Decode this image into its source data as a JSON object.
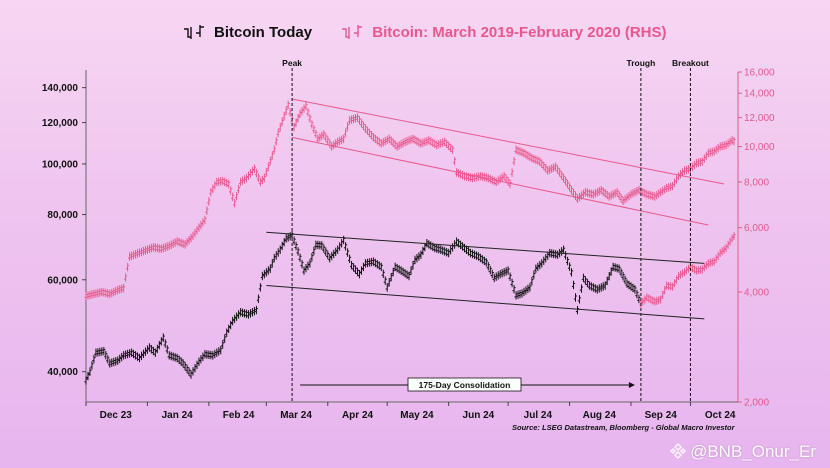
{
  "legend": {
    "left_label": "Bitcoin Today",
    "right_label": "Bitcoin: March 2019-February 2020 (RHS)"
  },
  "source_note": "Source: LSEG Datastream, Bloomberg - Global Macro Investor",
  "watermark": "@BNB_Onur_Er",
  "colors": {
    "today": "#111111",
    "hist": "#e8588c",
    "right_axis": "#e05a8a"
  },
  "chart_data": {
    "type": "line",
    "x_ticks": [
      "Dec 23",
      "Jan 24",
      "Feb 24",
      "Mar 24",
      "Apr 24",
      "May 24",
      "Jun 24",
      "Jul 24",
      "Aug 24",
      "Sep 24",
      "Oct 24"
    ],
    "y_left": {
      "scale": "log",
      "range": [
        35000,
        150000
      ],
      "ticks": [
        40000,
        60000,
        80000,
        100000,
        120000,
        140000
      ],
      "tick_labels": [
        "40,000",
        "60,000",
        "80,000",
        "100,000",
        "120,000",
        "140,000"
      ]
    },
    "y_right": {
      "scale": "log",
      "range": [
        2000,
        16000
      ],
      "ticks": [
        2000,
        4000,
        6000,
        8000,
        10000,
        12000,
        14000,
        16000
      ],
      "tick_labels": [
        "2,000",
        "4,000",
        "6,000",
        "8,000",
        "10,000",
        "12,000",
        "14,000",
        "16,000"
      ]
    },
    "series": [
      {
        "name": "Bitcoin Today",
        "axis": "left",
        "points": [
          {
            "x": "2023-12-01",
            "y": 38500
          },
          {
            "x": "2023-12-03",
            "y": 40000
          },
          {
            "x": "2023-12-06",
            "y": 43500
          },
          {
            "x": "2023-12-10",
            "y": 43800
          },
          {
            "x": "2023-12-13",
            "y": 41500
          },
          {
            "x": "2023-12-17",
            "y": 42000
          },
          {
            "x": "2023-12-20",
            "y": 43000
          },
          {
            "x": "2023-12-24",
            "y": 43500
          },
          {
            "x": "2023-12-28",
            "y": 42500
          },
          {
            "x": "2024-01-02",
            "y": 44500
          },
          {
            "x": "2024-01-05",
            "y": 43500
          },
          {
            "x": "2024-01-09",
            "y": 46500
          },
          {
            "x": "2024-01-12",
            "y": 43000
          },
          {
            "x": "2024-01-16",
            "y": 42500
          },
          {
            "x": "2024-01-19",
            "y": 41500
          },
          {
            "x": "2024-01-23",
            "y": 39500
          },
          {
            "x": "2024-01-27",
            "y": 41800
          },
          {
            "x": "2024-01-30",
            "y": 43200
          },
          {
            "x": "2024-02-03",
            "y": 43000
          },
          {
            "x": "2024-02-07",
            "y": 44000
          },
          {
            "x": "2024-02-10",
            "y": 47500
          },
          {
            "x": "2024-02-13",
            "y": 50000
          },
          {
            "x": "2024-02-17",
            "y": 52000
          },
          {
            "x": "2024-02-21",
            "y": 51500
          },
          {
            "x": "2024-02-25",
            "y": 52500
          },
          {
            "x": "2024-02-28",
            "y": 61000
          },
          {
            "x": "2024-03-03",
            "y": 63000
          },
          {
            "x": "2024-03-05",
            "y": 66000
          },
          {
            "x": "2024-03-08",
            "y": 68500
          },
          {
            "x": "2024-03-11",
            "y": 72000
          },
          {
            "x": "2024-03-14",
            "y": 73000
          },
          {
            "x": "2024-03-17",
            "y": 68000
          },
          {
            "x": "2024-03-20",
            "y": 62500
          },
          {
            "x": "2024-03-23",
            "y": 64500
          },
          {
            "x": "2024-03-26",
            "y": 70000
          },
          {
            "x": "2024-03-29",
            "y": 69800
          },
          {
            "x": "2024-04-02",
            "y": 66000
          },
          {
            "x": "2024-04-06",
            "y": 68500
          },
          {
            "x": "2024-04-09",
            "y": 71500
          },
          {
            "x": "2024-04-13",
            "y": 64000
          },
          {
            "x": "2024-04-17",
            "y": 61500
          },
          {
            "x": "2024-04-20",
            "y": 64500
          },
          {
            "x": "2024-04-24",
            "y": 65000
          },
          {
            "x": "2024-04-28",
            "y": 63500
          },
          {
            "x": "2024-05-01",
            "y": 58000
          },
          {
            "x": "2024-05-05",
            "y": 63500
          },
          {
            "x": "2024-05-08",
            "y": 62500
          },
          {
            "x": "2024-05-12",
            "y": 61000
          },
          {
            "x": "2024-05-15",
            "y": 65500
          },
          {
            "x": "2024-05-18",
            "y": 67000
          },
          {
            "x": "2024-05-21",
            "y": 70500
          },
          {
            "x": "2024-05-25",
            "y": 69000
          },
          {
            "x": "2024-05-28",
            "y": 68500
          },
          {
            "x": "2024-06-01",
            "y": 67500
          },
          {
            "x": "2024-06-05",
            "y": 71000
          },
          {
            "x": "2024-06-08",
            "y": 69500
          },
          {
            "x": "2024-06-12",
            "y": 67500
          },
          {
            "x": "2024-06-16",
            "y": 66500
          },
          {
            "x": "2024-06-20",
            "y": 64800
          },
          {
            "x": "2024-06-24",
            "y": 60500
          },
          {
            "x": "2024-06-27",
            "y": 61500
          },
          {
            "x": "2024-07-01",
            "y": 62500
          },
          {
            "x": "2024-07-05",
            "y": 56000
          },
          {
            "x": "2024-07-08",
            "y": 56500
          },
          {
            "x": "2024-07-12",
            "y": 58000
          },
          {
            "x": "2024-07-15",
            "y": 63000
          },
          {
            "x": "2024-07-18",
            "y": 64500
          },
          {
            "x": "2024-07-22",
            "y": 67500
          },
          {
            "x": "2024-07-26",
            "y": 67000
          },
          {
            "x": "2024-07-29",
            "y": 68500
          },
          {
            "x": "2024-08-02",
            "y": 62000
          },
          {
            "x": "2024-08-05",
            "y": 52500
          },
          {
            "x": "2024-08-08",
            "y": 60500
          },
          {
            "x": "2024-08-11",
            "y": 58500
          },
          {
            "x": "2024-08-15",
            "y": 57500
          },
          {
            "x": "2024-08-19",
            "y": 58500
          },
          {
            "x": "2024-08-23",
            "y": 63500
          },
          {
            "x": "2024-08-26",
            "y": 63000
          },
          {
            "x": "2024-08-30",
            "y": 59000
          },
          {
            "x": "2024-09-03",
            "y": 57500
          },
          {
            "x": "2024-09-06",
            "y": 54000
          }
        ]
      },
      {
        "name": "Bitcoin: March 2019-February 2020 (RHS)",
        "axis": "right",
        "points": [
          {
            "x": "2023-12-01",
            "y": 3900
          },
          {
            "x": "2023-12-05",
            "y": 3950
          },
          {
            "x": "2023-12-09",
            "y": 4000
          },
          {
            "x": "2023-12-13",
            "y": 3950
          },
          {
            "x": "2023-12-17",
            "y": 4050
          },
          {
            "x": "2023-12-20",
            "y": 4100
          },
          {
            "x": "2023-12-23",
            "y": 5000
          },
          {
            "x": "2023-12-27",
            "y": 5100
          },
          {
            "x": "2023-12-31",
            "y": 5200
          },
          {
            "x": "2024-01-04",
            "y": 5300
          },
          {
            "x": "2024-01-08",
            "y": 5250
          },
          {
            "x": "2024-01-12",
            "y": 5350
          },
          {
            "x": "2024-01-16",
            "y": 5500
          },
          {
            "x": "2024-01-20",
            "y": 5400
          },
          {
            "x": "2024-01-24",
            "y": 5700
          },
          {
            "x": "2024-01-27",
            "y": 6000
          },
          {
            "x": "2024-01-30",
            "y": 6300
          },
          {
            "x": "2024-02-02",
            "y": 7500
          },
          {
            "x": "2024-02-05",
            "y": 8000
          },
          {
            "x": "2024-02-08",
            "y": 8050
          },
          {
            "x": "2024-02-11",
            "y": 7900
          },
          {
            "x": "2024-02-14",
            "y": 7000
          },
          {
            "x": "2024-02-17",
            "y": 8000
          },
          {
            "x": "2024-02-20",
            "y": 8200
          },
          {
            "x": "2024-02-24",
            "y": 8700
          },
          {
            "x": "2024-02-27",
            "y": 8000
          },
          {
            "x": "2024-02-29",
            "y": 8200
          },
          {
            "x": "2024-03-02",
            "y": 8800
          },
          {
            "x": "2024-03-05",
            "y": 9800
          },
          {
            "x": "2024-03-07",
            "y": 10900
          },
          {
            "x": "2024-03-10",
            "y": 12100
          },
          {
            "x": "2024-03-12",
            "y": 13000
          },
          {
            "x": "2024-03-15",
            "y": 11300
          },
          {
            "x": "2024-03-18",
            "y": 12300
          },
          {
            "x": "2024-03-21",
            "y": 12900
          },
          {
            "x": "2024-03-24",
            "y": 11500
          },
          {
            "x": "2024-03-27",
            "y": 10500
          },
          {
            "x": "2024-03-30",
            "y": 10800
          },
          {
            "x": "2024-04-03",
            "y": 10000
          },
          {
            "x": "2024-04-06",
            "y": 10300
          },
          {
            "x": "2024-04-09",
            "y": 10500
          },
          {
            "x": "2024-04-12",
            "y": 11800
          },
          {
            "x": "2024-04-16",
            "y": 12000
          },
          {
            "x": "2024-04-20",
            "y": 11200
          },
          {
            "x": "2024-04-24",
            "y": 10600
          },
          {
            "x": "2024-04-28",
            "y": 10200
          },
          {
            "x": "2024-05-02",
            "y": 10500
          },
          {
            "x": "2024-05-06",
            "y": 10000
          },
          {
            "x": "2024-05-10",
            "y": 10300
          },
          {
            "x": "2024-05-14",
            "y": 10500
          },
          {
            "x": "2024-05-18",
            "y": 10200
          },
          {
            "x": "2024-05-22",
            "y": 10400
          },
          {
            "x": "2024-05-26",
            "y": 10100
          },
          {
            "x": "2024-05-30",
            "y": 10300
          },
          {
            "x": "2024-06-03",
            "y": 9800
          },
          {
            "x": "2024-06-05",
            "y": 8500
          },
          {
            "x": "2024-06-09",
            "y": 8300
          },
          {
            "x": "2024-06-13",
            "y": 8200
          },
          {
            "x": "2024-06-17",
            "y": 8300
          },
          {
            "x": "2024-06-21",
            "y": 8200
          },
          {
            "x": "2024-06-25",
            "y": 8000
          },
          {
            "x": "2024-06-29",
            "y": 8300
          },
          {
            "x": "2024-07-02",
            "y": 7900
          },
          {
            "x": "2024-07-05",
            "y": 9800
          },
          {
            "x": "2024-07-09",
            "y": 9600
          },
          {
            "x": "2024-07-13",
            "y": 9300
          },
          {
            "x": "2024-07-17",
            "y": 9100
          },
          {
            "x": "2024-07-21",
            "y": 8600
          },
          {
            "x": "2024-07-25",
            "y": 8800
          },
          {
            "x": "2024-07-29",
            "y": 8200
          },
          {
            "x": "2024-08-02",
            "y": 7600
          },
          {
            "x": "2024-08-05",
            "y": 7200
          },
          {
            "x": "2024-08-09",
            "y": 7500
          },
          {
            "x": "2024-08-13",
            "y": 7400
          },
          {
            "x": "2024-08-17",
            "y": 7600
          },
          {
            "x": "2024-08-21",
            "y": 7300
          },
          {
            "x": "2024-08-25",
            "y": 7500
          },
          {
            "x": "2024-08-28",
            "y": 7100
          },
          {
            "x": "2024-09-01",
            "y": 7400
          },
          {
            "x": "2024-09-05",
            "y": 7600
          },
          {
            "x": "2024-09-09",
            "y": 7400
          },
          {
            "x": "2024-09-13",
            "y": 7300
          },
          {
            "x": "2024-09-16",
            "y": 7500
          },
          {
            "x": "2024-09-19",
            "y": 7700
          },
          {
            "x": "2024-09-22",
            "y": 7800
          },
          {
            "x": "2024-09-25",
            "y": 8300
          },
          {
            "x": "2024-09-28",
            "y": 8600
          },
          {
            "x": "2024-10-01",
            "y": 8700
          },
          {
            "x": "2024-10-04",
            "y": 9000
          },
          {
            "x": "2024-10-07",
            "y": 9100
          },
          {
            "x": "2024-10-10",
            "y": 9600
          },
          {
            "x": "2024-10-13",
            "y": 9700
          },
          {
            "x": "2024-10-16",
            "y": 10000
          },
          {
            "x": "2024-10-19",
            "y": 10100
          },
          {
            "x": "2024-10-22",
            "y": 10400
          },
          {
            "x": "2024-10-24",
            "y": 10300
          }
        ]
      },
      {
        "name": "Bitcoin Today (continuation)",
        "axis": "left",
        "points": [
          {
            "x": "2024-09-06",
            "y": 54000
          },
          {
            "x": "2024-09-09",
            "y": 55500
          },
          {
            "x": "2024-09-13",
            "y": 54500
          },
          {
            "x": "2024-09-16",
            "y": 55000
          },
          {
            "x": "2024-09-19",
            "y": 58500
          },
          {
            "x": "2024-09-22",
            "y": 58200
          },
          {
            "x": "2024-09-25",
            "y": 61000
          },
          {
            "x": "2024-09-28",
            "y": 62000
          },
          {
            "x": "2024-10-01",
            "y": 63500
          },
          {
            "x": "2024-10-04",
            "y": 62500
          },
          {
            "x": "2024-10-07",
            "y": 62800
          },
          {
            "x": "2024-10-10",
            "y": 64500
          },
          {
            "x": "2024-10-13",
            "y": 65000
          },
          {
            "x": "2024-10-16",
            "y": 67500
          },
          {
            "x": "2024-10-19",
            "y": 69000
          },
          {
            "x": "2024-10-22",
            "y": 72000
          },
          {
            "x": "2024-10-24",
            "y": 73500
          }
        ]
      }
    ],
    "annotations": [
      {
        "label": "Peak",
        "x": "2024-03-14"
      },
      {
        "label": "Trough",
        "x": "2024-09-06"
      },
      {
        "label": "Breakout",
        "x": "2024-10-01"
      },
      {
        "label": "175-Day Consolidation",
        "from": "2024-03-14",
        "to": "2024-09-06"
      }
    ],
    "channels": [
      {
        "series": "Bitcoin Today",
        "axis": "left",
        "lines": [
          [
            {
              "x": "2024-03-01",
              "y": 74000
            },
            {
              "x": "2024-10-08",
              "y": 64500
            }
          ],
          [
            {
              "x": "2024-03-01",
              "y": 58500
            },
            {
              "x": "2024-10-08",
              "y": 50500
            }
          ]
        ]
      },
      {
        "series": "Bitcoin: March 2019-February 2020 (RHS)",
        "axis": "right",
        "lines": [
          [
            {
              "x": "2024-03-14",
              "y": 13500
            },
            {
              "x": "2024-10-18",
              "y": 7900
            }
          ],
          [
            {
              "x": "2024-03-14",
              "y": 10600
            },
            {
              "x": "2024-10-10",
              "y": 6100
            }
          ]
        ]
      }
    ]
  }
}
